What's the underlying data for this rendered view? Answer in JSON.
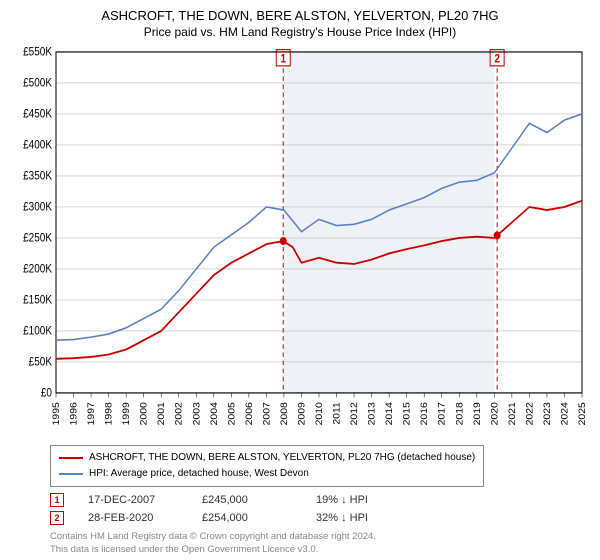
{
  "title": "ASHCROFT, THE DOWN, BERE ALSTON, YELVERTON, PL20 7HG",
  "subtitle": "Price paid vs. HM Land Registry's House Price Index (HPI)",
  "chart": {
    "type": "line",
    "background_color": "#ffffff",
    "grid_color": "#bbbbbb",
    "axis_color": "#000000",
    "shaded_band": {
      "x_from": 2008,
      "x_to": 2020,
      "fill": "#eef2f7"
    },
    "yaxis": {
      "min": 0,
      "max": 550000,
      "tick_step": 50000,
      "tick_labels": [
        "£0",
        "£50K",
        "£100K",
        "£150K",
        "£200K",
        "£250K",
        "£300K",
        "£350K",
        "£400K",
        "£450K",
        "£500K",
        "£550K"
      ],
      "label_fontsize": 10,
      "label_color": "#000000"
    },
    "xaxis": {
      "min": 1995,
      "max": 2025,
      "tick_step": 1,
      "tick_labels": [
        "1995",
        "1996",
        "1997",
        "1998",
        "1999",
        "2000",
        "2001",
        "2002",
        "2003",
        "2004",
        "2005",
        "2006",
        "2007",
        "2008",
        "2009",
        "2010",
        "2011",
        "2012",
        "2013",
        "2014",
        "2015",
        "2016",
        "2017",
        "2018",
        "2019",
        "2020",
        "2021",
        "2022",
        "2023",
        "2024",
        "2025"
      ],
      "label_fontsize": 9,
      "label_color": "#000000",
      "rotate": -90
    },
    "vertical_markers": [
      {
        "id": "1",
        "x": 2007.96,
        "color": "#cc0000",
        "dash": "4,3"
      },
      {
        "id": "2",
        "x": 2020.16,
        "color": "#cc0000",
        "dash": "4,3"
      }
    ],
    "series": [
      {
        "name": "property",
        "label": "ASHCROFT, THE DOWN, BERE ALSTON, YELVERTON, PL20 7HG (detached house)",
        "color": "#cc0000",
        "line_width": 1.6,
        "points": [
          [
            1995,
            55000
          ],
          [
            1996,
            56000
          ],
          [
            1997,
            58000
          ],
          [
            1998,
            62000
          ],
          [
            1999,
            70000
          ],
          [
            2000,
            85000
          ],
          [
            2001,
            100000
          ],
          [
            2002,
            130000
          ],
          [
            2003,
            160000
          ],
          [
            2004,
            190000
          ],
          [
            2005,
            210000
          ],
          [
            2006,
            225000
          ],
          [
            2007,
            240000
          ],
          [
            2007.96,
            245000
          ],
          [
            2008.5,
            235000
          ],
          [
            2009,
            210000
          ],
          [
            2010,
            218000
          ],
          [
            2011,
            210000
          ],
          [
            2012,
            208000
          ],
          [
            2013,
            215000
          ],
          [
            2014,
            225000
          ],
          [
            2015,
            232000
          ],
          [
            2016,
            238000
          ],
          [
            2017,
            245000
          ],
          [
            2018,
            250000
          ],
          [
            2019,
            252000
          ],
          [
            2020,
            250000
          ],
          [
            2020.16,
            254000
          ],
          [
            2021,
            275000
          ],
          [
            2022,
            300000
          ],
          [
            2023,
            295000
          ],
          [
            2024,
            300000
          ],
          [
            2025,
            310000
          ]
        ]
      },
      {
        "name": "hpi",
        "label": "HPI: Average price, detached house, West Devon",
        "color": "#5b7fc7",
        "line_width": 1.4,
        "points": [
          [
            1995,
            85000
          ],
          [
            1996,
            86000
          ],
          [
            1997,
            90000
          ],
          [
            1998,
            95000
          ],
          [
            1999,
            105000
          ],
          [
            2000,
            120000
          ],
          [
            2001,
            135000
          ],
          [
            2002,
            165000
          ],
          [
            2003,
            200000
          ],
          [
            2004,
            235000
          ],
          [
            2005,
            255000
          ],
          [
            2006,
            275000
          ],
          [
            2007,
            300000
          ],
          [
            2008,
            295000
          ],
          [
            2009,
            260000
          ],
          [
            2010,
            280000
          ],
          [
            2011,
            270000
          ],
          [
            2012,
            272000
          ],
          [
            2013,
            280000
          ],
          [
            2014,
            295000
          ],
          [
            2015,
            305000
          ],
          [
            2016,
            315000
          ],
          [
            2017,
            330000
          ],
          [
            2018,
            340000
          ],
          [
            2019,
            343000
          ],
          [
            2020,
            355000
          ],
          [
            2021,
            395000
          ],
          [
            2022,
            435000
          ],
          [
            2023,
            420000
          ],
          [
            2024,
            440000
          ],
          [
            2025,
            450000
          ]
        ]
      }
    ],
    "sale_markers": [
      {
        "x": 2007.96,
        "y": 245000,
        "color": "#cc0000"
      },
      {
        "x": 2020.16,
        "y": 254000,
        "color": "#cc0000"
      }
    ]
  },
  "legend": {
    "border_color": "#888888",
    "rows": [
      {
        "color": "#cc0000",
        "label": "ASHCROFT, THE DOWN, BERE ALSTON, YELVERTON, PL20 7HG (detached house)"
      },
      {
        "color": "#5b7fc7",
        "label": "HPI: Average price, detached house, West Devon"
      }
    ]
  },
  "data_rows": [
    {
      "marker": "1",
      "marker_color": "#cc0000",
      "date": "17-DEC-2007",
      "price": "£245,000",
      "delta": "19% ↓ HPI"
    },
    {
      "marker": "2",
      "marker_color": "#cc0000",
      "date": "28-FEB-2020",
      "price": "£254,000",
      "delta": "32% ↓ HPI"
    }
  ],
  "footnote": {
    "line1": "Contains HM Land Registry data © Crown copyright and database right 2024.",
    "line2": "This data is licensed under the Open Government Licence v3.0."
  }
}
